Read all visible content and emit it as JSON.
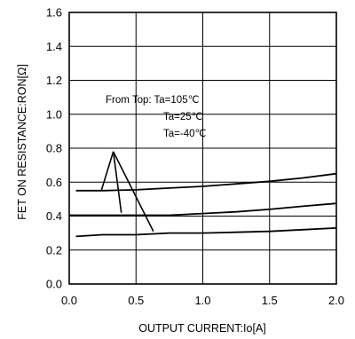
{
  "chart_data": {
    "type": "line",
    "title": "",
    "xlabel": "OUTPUT CURRENT:Io[A]",
    "ylabel": "FET ON RESISTANCE:RON[Ω]",
    "xlim": [
      0.0,
      2.0
    ],
    "ylim": [
      0.0,
      1.6
    ],
    "xticks": [
      "0.0",
      "0.5",
      "1.0",
      "1.5",
      "2.0"
    ],
    "yticks": [
      "0.0",
      "0.2",
      "0.4",
      "0.6",
      "0.8",
      "1.0",
      "1.2",
      "1.4",
      "1.6"
    ],
    "grid": true,
    "annotation": {
      "lines": [
        "From Top: Ta=105℃",
        "Ta=25℃",
        "Ta=-40℃"
      ],
      "pointer_origin": [
        0.33,
        0.78
      ],
      "pointer_targets": [
        [
          0.24,
          0.55
        ],
        [
          0.39,
          0.42
        ],
        [
          0.63,
          0.31
        ]
      ]
    },
    "series": [
      {
        "x": [
          0.05,
          0.25,
          0.5,
          0.75,
          1.0,
          1.25,
          1.5,
          1.75,
          2.0
        ],
        "y": [
          0.55,
          0.55,
          0.555,
          0.565,
          0.575,
          0.59,
          0.605,
          0.625,
          0.65
        ]
      },
      {
        "x": [
          0.0,
          0.25,
          0.5,
          0.75,
          1.0,
          1.25,
          1.5,
          1.75,
          2.0
        ],
        "y": [
          0.405,
          0.405,
          0.405,
          0.405,
          0.415,
          0.425,
          0.44,
          0.458,
          0.475
        ]
      },
      {
        "x": [
          0.05,
          0.25,
          0.5,
          0.75,
          1.0,
          1.25,
          1.5,
          1.75,
          2.0
        ],
        "y": [
          0.28,
          0.29,
          0.29,
          0.3,
          0.3,
          0.305,
          0.31,
          0.32,
          0.33
        ]
      }
    ]
  }
}
